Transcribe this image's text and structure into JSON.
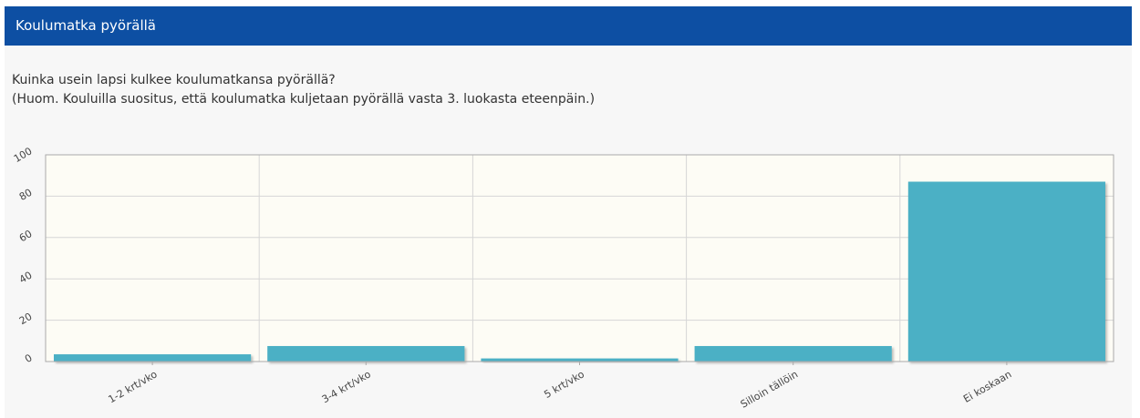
{
  "header": {
    "title": "Koulumatka pyörällä"
  },
  "question": {
    "line1": "Kuinka usein lapsi kulkee koulumatkansa pyörällä?",
    "line2": "(Huom. Kouluilla suositus, että koulumatka kuljetaan pyörällä vasta 3. luokasta eteenpäin.)"
  },
  "colors": {
    "header_bg": "#0d4fa3",
    "bar": "#4bb0c5",
    "plot_bg": "#fdfcf5"
  },
  "chart_data": {
    "type": "bar",
    "categories": [
      "1-2 krt/vko",
      "3-4 krt/vko",
      "5 krt/vko",
      "Silloin tällöin",
      "Ei koskaan"
    ],
    "values": [
      3.5,
      7.5,
      1.5,
      7.5,
      87
    ],
    "ylim": [
      0,
      100
    ],
    "yticks": [
      "0",
      "20",
      "40",
      "60",
      "80",
      "100"
    ],
    "grid": true
  }
}
